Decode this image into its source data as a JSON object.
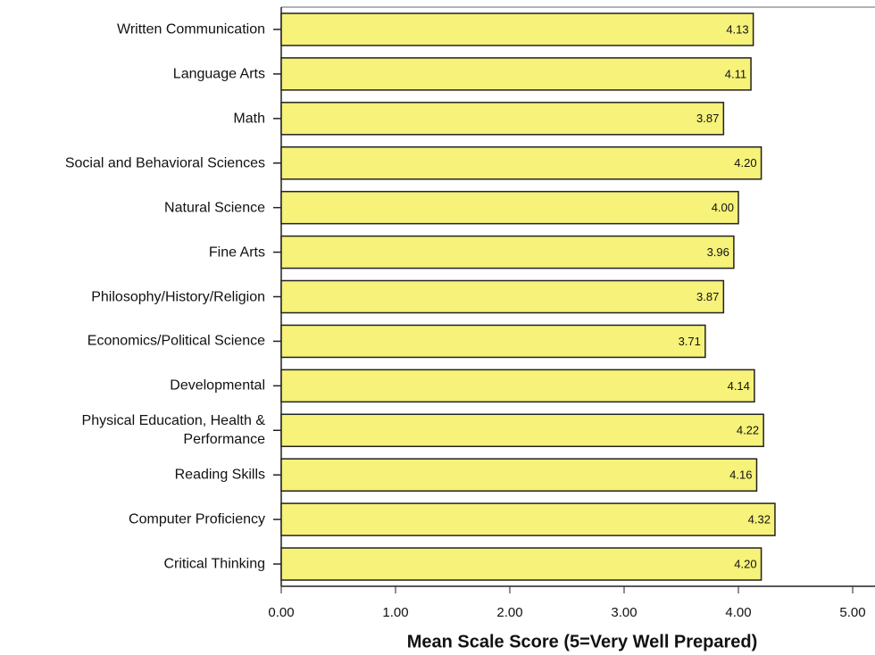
{
  "chart_data": {
    "type": "bar",
    "orientation": "horizontal",
    "x_label": "Mean Scale Score (5=Very Well Prepared)",
    "categories": [
      "Written Communication",
      "Language Arts",
      "Math",
      "Social and Behavioral Sciences",
      "Natural Science",
      "Fine Arts",
      "Philosophy/History/Religion",
      "Economics/Political Science",
      "Developmental",
      "Physical Education, Health & Performance",
      "Reading Skills",
      "Computer Proficiency",
      "Critical Thinking"
    ],
    "values": [
      4.13,
      4.11,
      3.87,
      4.2,
      4.0,
      3.96,
      3.87,
      3.71,
      4.14,
      4.22,
      4.16,
      4.32,
      4.2
    ],
    "value_labels": [
      "4.13",
      "4.11",
      "3.87",
      "4.20",
      "4.00",
      "3.96",
      "3.87",
      "3.71",
      "4.14",
      "4.22",
      "4.16",
      "4.32",
      "4.20"
    ],
    "color": "#f6f27a",
    "xlim": [
      0,
      5
    ],
    "xticks": [
      {
        "value": 0,
        "label": "0.00"
      },
      {
        "value": 1,
        "label": "1.00"
      },
      {
        "value": 2,
        "label": "2.00"
      },
      {
        "value": 3,
        "label": "3.00"
      },
      {
        "value": 4,
        "label": "4.00"
      },
      {
        "value": 5,
        "label": "5.00"
      }
    ]
  }
}
